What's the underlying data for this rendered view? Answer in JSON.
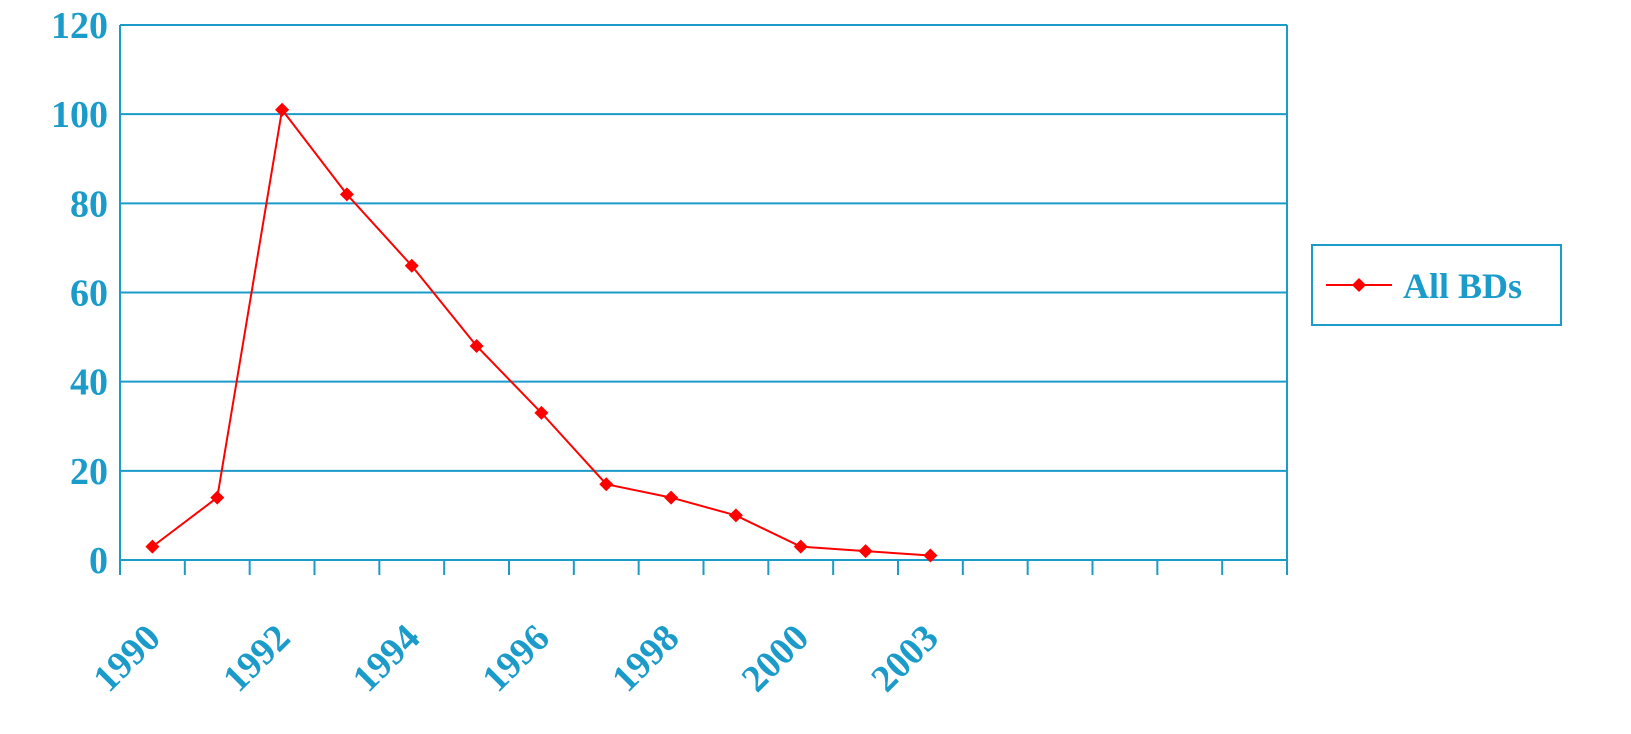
{
  "chart_data": {
    "type": "line",
    "x_tick_labels": [
      "1990",
      "1992",
      "1994",
      "1996",
      "1998",
      "2000",
      "2003"
    ],
    "y_ticks": [
      0,
      20,
      40,
      60,
      80,
      100,
      120
    ],
    "ylim": [
      0,
      120
    ],
    "grid": true,
    "legend_position": "right",
    "series": [
      {
        "name": "All BDs",
        "color": "#ff0000",
        "marker": "diamond",
        "values": [
          3,
          14,
          101,
          82,
          66,
          48,
          33,
          17,
          14,
          10,
          3,
          2,
          1
        ]
      }
    ],
    "colors": {
      "axis": "#1a9bc9",
      "gridline": "#1a9bc9",
      "tick_label": "#1a9bc9"
    }
  }
}
